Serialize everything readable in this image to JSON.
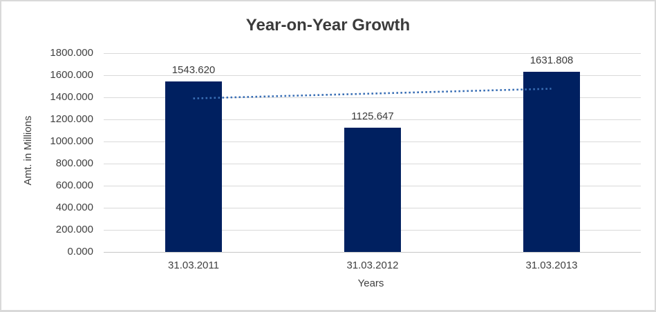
{
  "frame": {
    "background_color": "#ffffff",
    "border_color": "#d9d9d9"
  },
  "chart_data": {
    "type": "bar",
    "title": "Year-on-Year Growth",
    "xlabel": "Years",
    "ylabel": "Amt. in Millions",
    "categories": [
      "31.03.2011",
      "31.03.2012",
      "31.03.2013"
    ],
    "values": [
      1543.62,
      1125.647,
      1631.808
    ],
    "data_labels": [
      "1543.620",
      "1125.647",
      "1631.808"
    ],
    "ylim": [
      0,
      1800
    ],
    "ytick_values": [
      0,
      200,
      400,
      600,
      800,
      1000,
      1200,
      1400,
      1600,
      1800
    ],
    "ytick_labels": [
      "0.000",
      "200.000",
      "400.000",
      "600.000",
      "800.000",
      "1000.000",
      "1200.000",
      "1400.000",
      "1600.000",
      "1800.000"
    ],
    "grid": true,
    "legend": "none",
    "bar_color": "#002060",
    "gridline_color": "#d9d9d9",
    "text_color": "#404040",
    "trendline": {
      "type": "linear",
      "style": "dotted",
      "color": "#3a6fb5",
      "start_value": 1390,
      "end_value": 1478
    }
  }
}
